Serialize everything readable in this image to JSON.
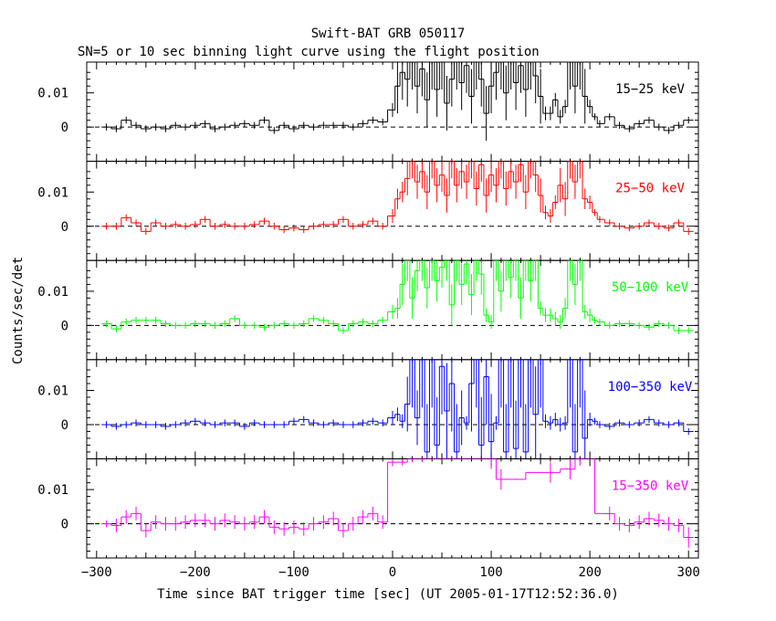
{
  "chart_data": {
    "type": "line",
    "title": "Swift-BAT GRB 050117",
    "subtitle": "SN=5 or 10 sec binning light curve using the flight position",
    "xlabel": "Time since BAT trigger time [sec] (UT 2005-01-17T12:52:36.0)",
    "ylabel": "Counts/sec/det",
    "xlim": [
      -310,
      310
    ],
    "ylim": [
      -0.01,
      0.019
    ],
    "xticks": [
      -300,
      -200,
      -100,
      0,
      100,
      200,
      300
    ],
    "xtick_labels": [
      "−300",
      "−200",
      "−100",
      "0",
      "100",
      "200",
      "300"
    ],
    "yticks": [
      0,
      0.01
    ],
    "ytick_labels": [
      "0",
      "0.01"
    ],
    "zero_line": "dashed",
    "panels": [
      {
        "name": "15-25 keV",
        "label": "15−25 keV",
        "color": "#000000",
        "x": [
          -290,
          -280,
          -270,
          -260,
          -250,
          -240,
          -230,
          -220,
          -210,
          -200,
          -190,
          -180,
          -170,
          -160,
          -150,
          -140,
          -130,
          -120,
          -110,
          -100,
          -90,
          -80,
          -70,
          -60,
          -50,
          -40,
          -30,
          -20,
          -10,
          0,
          5,
          10,
          15,
          20,
          25,
          30,
          35,
          40,
          45,
          50,
          55,
          60,
          65,
          70,
          75,
          80,
          85,
          90,
          95,
          100,
          105,
          110,
          115,
          120,
          125,
          130,
          135,
          140,
          145,
          150,
          155,
          160,
          165,
          170,
          175,
          180,
          185,
          190,
          195,
          200,
          205,
          210,
          220,
          230,
          240,
          250,
          260,
          270,
          280,
          290,
          300
        ],
        "y": [
          0,
          -0.0005,
          0.002,
          0.0005,
          -0.0005,
          0,
          -0.0005,
          0.0005,
          0,
          0.0005,
          0.001,
          -0.0005,
          0,
          0.0005,
          0.001,
          0.0005,
          0.002,
          -0.001,
          0.0005,
          -0.0005,
          0.0005,
          0,
          0.0005,
          0.0005,
          0.0005,
          0,
          0.001,
          0.002,
          0.0015,
          0.005,
          0.012,
          0.016,
          0.014,
          0.019,
          0.012,
          0.017,
          0.008,
          0.019,
          0.011,
          0.019,
          0.007,
          0.014,
          0.019,
          0.013,
          0.018,
          0.009,
          0.019,
          0.014,
          0.004,
          0.012,
          0.016,
          0.019,
          0.01,
          0.019,
          0.013,
          0.018,
          0.011,
          0.019,
          0.015,
          0.009,
          0.004,
          0.004,
          0.008,
          0.003,
          0.006,
          0.019,
          0.012,
          0.019,
          0.009,
          0.006,
          0.003,
          0.001,
          0.003,
          0.0005,
          -0.0005,
          0.001,
          0.002,
          0,
          -0.001,
          0.0005,
          0.002
        ],
        "err": [
          0.001,
          0.001,
          0.001,
          0.001,
          0.001,
          0.001,
          0.001,
          0.001,
          0.001,
          0.001,
          0.001,
          0.001,
          0.001,
          0.001,
          0.001,
          0.001,
          0.001,
          0.001,
          0.001,
          0.001,
          0.001,
          0.001,
          0.001,
          0.001,
          0.001,
          0.001,
          0.001,
          0.001,
          0.001,
          0.002,
          0.008,
          0.008,
          0.008,
          0.008,
          0.008,
          0.008,
          0.008,
          0.008,
          0.008,
          0.008,
          0.008,
          0.008,
          0.008,
          0.008,
          0.008,
          0.008,
          0.008,
          0.008,
          0.008,
          0.008,
          0.008,
          0.008,
          0.008,
          0.008,
          0.008,
          0.008,
          0.008,
          0.008,
          0.008,
          0.008,
          0.002,
          0.002,
          0.002,
          0.002,
          0.002,
          0.008,
          0.008,
          0.008,
          0.008,
          0.002,
          0.001,
          0.001,
          0.001,
          0.001,
          0.001,
          0.001,
          0.001,
          0.001,
          0.001,
          0.001,
          0.001
        ]
      },
      {
        "name": "25-50 keV",
        "label": "25−50 keV",
        "color": "#ff0000",
        "x": [
          -290,
          -280,
          -270,
          -260,
          -250,
          -240,
          -230,
          -220,
          -210,
          -200,
          -190,
          -180,
          -170,
          -160,
          -150,
          -140,
          -130,
          -120,
          -110,
          -100,
          -90,
          -80,
          -70,
          -60,
          -50,
          -40,
          -30,
          -20,
          -10,
          0,
          5,
          10,
          15,
          20,
          25,
          30,
          35,
          40,
          45,
          50,
          55,
          60,
          65,
          70,
          75,
          80,
          85,
          90,
          95,
          100,
          105,
          110,
          115,
          120,
          125,
          130,
          135,
          140,
          145,
          150,
          155,
          160,
          165,
          170,
          175,
          180,
          185,
          190,
          195,
          200,
          205,
          210,
          220,
          230,
          240,
          250,
          260,
          270,
          280,
          290,
          300
        ],
        "y": [
          0,
          0,
          0.0025,
          0.001,
          -0.0015,
          0.001,
          0,
          0.0005,
          0,
          0.0005,
          0.002,
          0,
          0.0005,
          0,
          0,
          0.0005,
          0.0015,
          0,
          -0.001,
          -0.0005,
          -0.001,
          0,
          0.0005,
          0.0005,
          0.002,
          0,
          0.0005,
          0.0015,
          0,
          0.003,
          0.008,
          0.01,
          0.014,
          0.019,
          0.013,
          0.016,
          0.01,
          0.019,
          0.012,
          0.015,
          0.009,
          0.019,
          0.012,
          0.016,
          0.013,
          0.019,
          0.011,
          0.018,
          0.009,
          0.015,
          0.012,
          0.019,
          0.011,
          0.016,
          0.013,
          0.018,
          0.01,
          0.019,
          0.015,
          0.009,
          0.004,
          0.003,
          0.007,
          0.012,
          0.008,
          0.019,
          0.013,
          0.019,
          0.008,
          0.007,
          0.004,
          0.002,
          0.001,
          0,
          -0.0005,
          0,
          0.001,
          0,
          -0.0005,
          0.001,
          -0.0015
        ],
        "err": [
          0.001,
          0.001,
          0.001,
          0.001,
          0.001,
          0.001,
          0.001,
          0.001,
          0.001,
          0.001,
          0.001,
          0.001,
          0.001,
          0.001,
          0.001,
          0.001,
          0.001,
          0.001,
          0.001,
          0.001,
          0.001,
          0.001,
          0.001,
          0.001,
          0.001,
          0.001,
          0.001,
          0.001,
          0.001,
          0.002,
          0.003,
          0.003,
          0.005,
          0.005,
          0.005,
          0.005,
          0.005,
          0.005,
          0.005,
          0.005,
          0.005,
          0.005,
          0.005,
          0.005,
          0.005,
          0.005,
          0.005,
          0.005,
          0.005,
          0.005,
          0.005,
          0.005,
          0.005,
          0.005,
          0.005,
          0.005,
          0.005,
          0.005,
          0.005,
          0.005,
          0.002,
          0.002,
          0.002,
          0.005,
          0.005,
          0.005,
          0.005,
          0.005,
          0.003,
          0.002,
          0.001,
          0.001,
          0.001,
          0.001,
          0.001,
          0.001,
          0.001,
          0.001,
          0.001,
          0.001,
          0.001
        ]
      },
      {
        "name": "50-100 keV",
        "label": "50−100 keV",
        "color": "#00ff00",
        "x": [
          -290,
          -280,
          -270,
          -260,
          -250,
          -240,
          -230,
          -220,
          -210,
          -200,
          -190,
          -180,
          -170,
          -160,
          -150,
          -140,
          -130,
          -120,
          -110,
          -100,
          -90,
          -80,
          -70,
          -60,
          -50,
          -40,
          -30,
          -20,
          -10,
          0,
          5,
          10,
          15,
          20,
          25,
          30,
          35,
          40,
          45,
          50,
          55,
          60,
          65,
          70,
          75,
          80,
          85,
          90,
          95,
          100,
          105,
          110,
          115,
          120,
          125,
          130,
          135,
          140,
          145,
          150,
          155,
          160,
          165,
          170,
          175,
          180,
          185,
          190,
          195,
          200,
          205,
          210,
          220,
          230,
          240,
          250,
          260,
          270,
          280,
          290,
          300
        ],
        "y": [
          0.0005,
          -0.001,
          0.001,
          0.0015,
          0.0015,
          0.0015,
          0.0005,
          0,
          0,
          0.0005,
          0.0005,
          0,
          0.0005,
          0.002,
          0,
          0,
          -0.0005,
          0,
          0.0005,
          0,
          0.0005,
          0.002,
          0.0015,
          0.0005,
          -0.0015,
          0.0005,
          0.001,
          0.0005,
          0.0015,
          0.004,
          0.005,
          0.012,
          0.019,
          0.008,
          0.016,
          0.019,
          0.011,
          0.019,
          0.013,
          0.017,
          0.019,
          0.006,
          0.019,
          0.012,
          0.018,
          0.009,
          0.019,
          0.015,
          0.003,
          0.001,
          0.019,
          0.01,
          0.019,
          0.014,
          0.019,
          0.008,
          0.019,
          0.013,
          0.019,
          0.005,
          0.003,
          0.003,
          0.002,
          0.001,
          0.005,
          0.019,
          0.012,
          0.019,
          0.004,
          0.003,
          0.0015,
          0.001,
          0,
          0.0005,
          0.0005,
          0,
          -0.0005,
          0.0005,
          0,
          -0.0015,
          -0.0015
        ],
        "err": [
          0.001,
          0.001,
          0.001,
          0.001,
          0.001,
          0.001,
          0.001,
          0.001,
          0.001,
          0.001,
          0.001,
          0.001,
          0.001,
          0.001,
          0.001,
          0.001,
          0.001,
          0.001,
          0.001,
          0.001,
          0.001,
          0.001,
          0.001,
          0.001,
          0.001,
          0.001,
          0.001,
          0.001,
          0.001,
          0.002,
          0.003,
          0.006,
          0.006,
          0.006,
          0.006,
          0.006,
          0.006,
          0.006,
          0.006,
          0.006,
          0.006,
          0.006,
          0.006,
          0.006,
          0.006,
          0.006,
          0.006,
          0.006,
          0.002,
          0.002,
          0.006,
          0.006,
          0.006,
          0.006,
          0.006,
          0.006,
          0.006,
          0.006,
          0.006,
          0.002,
          0.002,
          0.002,
          0.002,
          0.002,
          0.003,
          0.006,
          0.006,
          0.006,
          0.002,
          0.002,
          0.001,
          0.001,
          0.001,
          0.001,
          0.001,
          0.001,
          0.001,
          0.001,
          0.001,
          0.001,
          0.001
        ]
      },
      {
        "name": "100-350 keV",
        "label": "100−350 keV",
        "color": "#0000ff",
        "x": [
          -290,
          -280,
          -270,
          -260,
          -250,
          -240,
          -230,
          -220,
          -210,
          -200,
          -190,
          -180,
          -170,
          -160,
          -150,
          -140,
          -130,
          -120,
          -110,
          -100,
          -90,
          -80,
          -70,
          -60,
          -50,
          -40,
          -30,
          -20,
          -10,
          0,
          5,
          10,
          15,
          20,
          25,
          30,
          35,
          40,
          45,
          50,
          55,
          60,
          65,
          70,
          75,
          80,
          85,
          90,
          95,
          100,
          105,
          110,
          115,
          120,
          125,
          130,
          135,
          140,
          145,
          150,
          155,
          160,
          165,
          170,
          175,
          180,
          185,
          190,
          195,
          200,
          205,
          210,
          220,
          230,
          240,
          250,
          260,
          270,
          280,
          290,
          300
        ],
        "y": [
          0,
          -0.0005,
          0,
          0.0005,
          0,
          0,
          -0.0005,
          0,
          0.0005,
          0.001,
          0.0005,
          0,
          0.0005,
          0.0005,
          -0.0005,
          0.0005,
          0,
          0,
          0,
          0.001,
          0.0015,
          0.0005,
          0,
          0.0005,
          0,
          0,
          0.0005,
          0.001,
          0.0005,
          0.002,
          0.003,
          0.001,
          0.006,
          0.019,
          0.002,
          0.019,
          -0.008,
          0.019,
          -0.006,
          0.017,
          0.004,
          0.012,
          -0.008,
          0.002,
          0.0005,
          0.012,
          0.019,
          -0.006,
          0.014,
          -0.005,
          0.0005,
          0.019,
          -0.008,
          0.019,
          -0.007,
          0.019,
          -0.008,
          0.019,
          0.003,
          0.019,
          0.001,
          0.0005,
          0.0015,
          0,
          0.0005,
          0.019,
          -0.008,
          0.019,
          -0.004,
          0.0015,
          0.001,
          0,
          -0.0005,
          0.0005,
          0,
          0.0005,
          0.0015,
          0.0005,
          0,
          0.0005,
          -0.002
        ],
        "err": [
          0.001,
          0.001,
          0.001,
          0.001,
          0.001,
          0.001,
          0.001,
          0.001,
          0.001,
          0.001,
          0.001,
          0.001,
          0.001,
          0.001,
          0.001,
          0.001,
          0.001,
          0.001,
          0.001,
          0.001,
          0.001,
          0.001,
          0.001,
          0.001,
          0.001,
          0.001,
          0.001,
          0.001,
          0.001,
          0.002,
          0.002,
          0.002,
          0.008,
          0.014,
          0.008,
          0.014,
          0.014,
          0.014,
          0.014,
          0.014,
          0.014,
          0.014,
          0.014,
          0.008,
          0.002,
          0.014,
          0.014,
          0.014,
          0.014,
          0.014,
          0.002,
          0.014,
          0.014,
          0.014,
          0.014,
          0.014,
          0.014,
          0.014,
          0.014,
          0.014,
          0.002,
          0.002,
          0.002,
          0.002,
          0.002,
          0.014,
          0.014,
          0.014,
          0.014,
          0.002,
          0.001,
          0.001,
          0.001,
          0.001,
          0.001,
          0.001,
          0.001,
          0.001,
          0.001,
          0.001,
          0.001
        ]
      },
      {
        "name": "15-350 keV",
        "label": "15−350 keV",
        "color": "#ff00ff",
        "x": [
          -290,
          -280,
          -270,
          -260,
          -250,
          -240,
          -230,
          -220,
          -210,
          -200,
          -190,
          -180,
          -170,
          -160,
          -150,
          -140,
          -130,
          -120,
          -110,
          -100,
          -90,
          -80,
          -70,
          -60,
          -50,
          -40,
          -30,
          -20,
          -10,
          0,
          10,
          20,
          30,
          100,
          110,
          160,
          180,
          190,
          220,
          230,
          240,
          250,
          260,
          270,
          280,
          290,
          300
        ],
        "y": [
          0,
          -0.0005,
          0.002,
          0.003,
          -0.002,
          0.0005,
          0,
          0,
          0.0005,
          0.001,
          0.001,
          0,
          0.001,
          0.0005,
          0,
          0.0005,
          0.002,
          -0.001,
          -0.0015,
          -0.001,
          -0.0015,
          0,
          0.0005,
          0.0015,
          -0.002,
          0,
          0.002,
          0.003,
          0.0005,
          0.018,
          0.018,
          0.019,
          0.019,
          0.019,
          0.013,
          0.015,
          0.016,
          0.019,
          0.003,
          0,
          -0.0005,
          0.0005,
          0.0015,
          0.001,
          0,
          -0.0005,
          -0.004
        ],
        "err": [
          0.001,
          0.002,
          0.002,
          0.002,
          0.002,
          0.002,
          0.002,
          0.002,
          0.002,
          0.002,
          0.002,
          0.002,
          0.002,
          0.002,
          0.002,
          0.002,
          0.002,
          0.002,
          0.002,
          0.002,
          0.002,
          0.002,
          0.002,
          0.002,
          0.002,
          0.002,
          0.002,
          0.002,
          0.002,
          0.001,
          0.001,
          0.001,
          0.001,
          0.003,
          0.003,
          0.003,
          0.003,
          0.002,
          0.002,
          0.002,
          0.002,
          0.002,
          0.002,
          0.002,
          0.002,
          0.002,
          0.003
        ]
      }
    ]
  }
}
